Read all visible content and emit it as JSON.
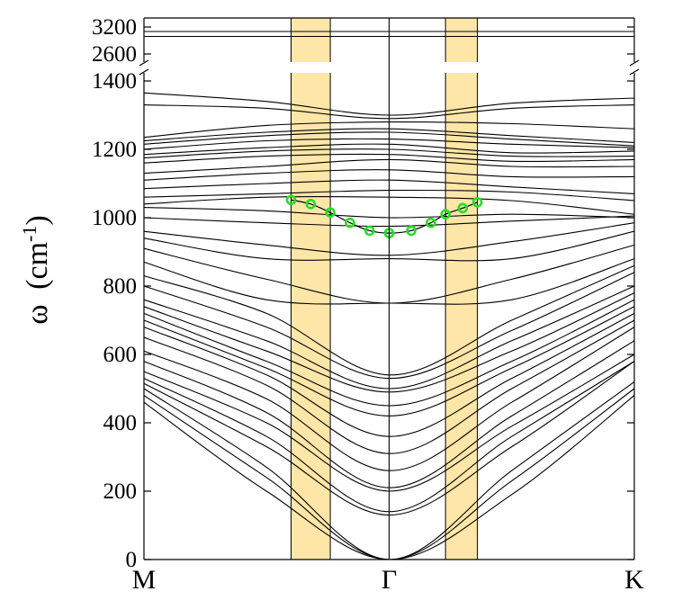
{
  "chart_data": {
    "type": "line",
    "title": "",
    "xlabel": "",
    "ylabel": {
      "symbol": "ω",
      "unit_open": "(cm",
      "unit_sup": "-1",
      "unit_close": ")"
    },
    "x_ticks": [
      "M",
      "Γ",
      "K"
    ],
    "x_tick_positions": [
      0,
      1,
      2
    ],
    "y_ticks_lower": [
      "0",
      "200",
      "400",
      "600",
      "800",
      "1000",
      "1200",
      "1400"
    ],
    "y_ticks_upper": [
      "2600",
      "3200"
    ],
    "ylim_lower": [
      0,
      1400
    ],
    "ylim_upper": [
      2600,
      3200
    ],
    "axis_break": true,
    "grid": false,
    "legend": "none",
    "highlight_bands": [
      [
        0.6,
        0.76
      ],
      [
        1.23,
        1.36
      ]
    ],
    "highlight_color": "#fde6a8",
    "marker_color": "#22e022",
    "line_color": "#000000",
    "highlighted_mode": {
      "x": [
        0.6,
        0.68,
        0.76,
        0.84,
        0.92,
        1.0,
        1.09,
        1.17,
        1.23,
        1.3,
        1.36
      ],
      "y": [
        1052,
        1040,
        1015,
        985,
        962,
        955,
        962,
        985,
        1010,
        1028,
        1045
      ]
    },
    "series": [
      {
        "x": [
          0,
          1,
          2
        ],
        "y": [
          3100,
          3100,
          3100
        ]
      },
      {
        "x": [
          0,
          1,
          2
        ],
        "y": [
          2990,
          2990,
          2990
        ]
      },
      {
        "x": [
          0,
          0.5,
          1,
          1.5,
          2
        ],
        "y": [
          1365,
          1340,
          1300,
          1335,
          1350
        ]
      },
      {
        "x": [
          0,
          0.5,
          1,
          1.5,
          2
        ],
        "y": [
          1330,
          1320,
          1290,
          1320,
          1330
        ]
      },
      {
        "x": [
          0,
          0.5,
          1,
          1.5,
          2
        ],
        "y": [
          1235,
          1270,
          1280,
          1275,
          1260
        ]
      },
      {
        "x": [
          0,
          0.5,
          1,
          1.5,
          2
        ],
        "y": [
          1225,
          1250,
          1260,
          1240,
          1220
        ]
      },
      {
        "x": [
          0,
          0.5,
          1,
          1.5,
          2
        ],
        "y": [
          1215,
          1240,
          1250,
          1230,
          1210
        ]
      },
      {
        "x": [
          0,
          0.5,
          1,
          1.5,
          2
        ],
        "y": [
          1200,
          1225,
          1230,
          1215,
          1205
        ]
      },
      {
        "x": [
          0,
          0.5,
          1,
          1.5,
          2
        ],
        "y": [
          1185,
          1205,
          1215,
          1190,
          1195
        ]
      },
      {
        "x": [
          0,
          0.5,
          1,
          1.5,
          2
        ],
        "y": [
          1175,
          1195,
          1200,
          1180,
          1180
        ]
      },
      {
        "x": [
          0,
          0.5,
          1,
          1.5,
          2
        ],
        "y": [
          1160,
          1180,
          1185,
          1165,
          1170
        ]
      },
      {
        "x": [
          0,
          0.5,
          1,
          1.5,
          2
        ],
        "y": [
          1130,
          1150,
          1170,
          1150,
          1150
        ]
      },
      {
        "x": [
          0,
          0.5,
          1,
          1.5,
          2
        ],
        "y": [
          1110,
          1130,
          1140,
          1120,
          1120
        ]
      },
      {
        "x": [
          0,
          0.5,
          1,
          1.5,
          2
        ],
        "y": [
          1085,
          1100,
          1110,
          1090,
          1070
        ]
      },
      {
        "x": [
          0,
          0.5,
          1,
          1.5,
          2
        ],
        "y": [
          1060,
          1070,
          1080,
          1075,
          1050
        ]
      },
      {
        "x": [
          0,
          0.5,
          1,
          1.5,
          2
        ],
        "y": [
          1040,
          1060,
          1060,
          1050,
          1010
        ]
      },
      {
        "x": [
          0,
          0.5,
          1,
          1.5,
          2
        ],
        "y": [
          1030,
          1020,
          1000,
          1010,
          1000
        ]
      },
      {
        "x": [
          0,
          0.5,
          1,
          1.5,
          2
        ],
        "y": [
          1000,
          985,
          975,
          990,
          1005
        ]
      },
      {
        "x": [
          0,
          0.5,
          1,
          1.5,
          2
        ],
        "y": [
          960,
          920,
          890,
          930,
          985
        ]
      },
      {
        "x": [
          0,
          0.5,
          1,
          1.5,
          2
        ],
        "y": [
          940,
          880,
          880,
          880,
          960
        ]
      },
      {
        "x": [
          0,
          0.5,
          1,
          1.5,
          2
        ],
        "y": [
          910,
          820,
          750,
          820,
          920
        ]
      },
      {
        "x": [
          0,
          0.5,
          1,
          1.5,
          2
        ],
        "y": [
          870,
          760,
          750,
          760,
          880
        ]
      },
      {
        "x": [
          0,
          0.5,
          1,
          1.5,
          2
        ],
        "y": [
          830,
          720,
          540,
          700,
          860
        ]
      },
      {
        "x": [
          0,
          0.5,
          1,
          1.5,
          2
        ],
        "y": [
          800,
          680,
          530,
          670,
          840
        ]
      },
      {
        "x": [
          0,
          0.5,
          1,
          1.5,
          2
        ],
        "y": [
          760,
          640,
          500,
          640,
          800
        ]
      },
      {
        "x": [
          0,
          0.5,
          1,
          1.5,
          2
        ],
        "y": [
          740,
          610,
          490,
          610,
          780
        ]
      },
      {
        "x": [
          0,
          0.5,
          1,
          1.5,
          2
        ],
        "y": [
          720,
          580,
          450,
          580,
          760
        ]
      },
      {
        "x": [
          0,
          0.5,
          1,
          1.5,
          2
        ],
        "y": [
          700,
          560,
          420,
          560,
          740
        ]
      },
      {
        "x": [
          0,
          0.5,
          1,
          1.5,
          2
        ],
        "y": [
          680,
          540,
          360,
          530,
          720
        ]
      },
      {
        "x": [
          0,
          0.5,
          1,
          1.5,
          2
        ],
        "y": [
          650,
          510,
          310,
          500,
          700
        ]
      },
      {
        "x": [
          0,
          0.5,
          1,
          1.5,
          2
        ],
        "y": [
          610,
          470,
          260,
          460,
          680
        ]
      },
      {
        "x": [
          0,
          0.5,
          1,
          1.5,
          2
        ],
        "y": [
          580,
          430,
          210,
          420,
          640
        ]
      },
      {
        "x": [
          0,
          0.5,
          1,
          1.5,
          2
        ],
        "y": [
          550,
          400,
          200,
          390,
          600
        ]
      },
      {
        "x": [
          0,
          0.5,
          1,
          1.5,
          2
        ],
        "y": [
          530,
          360,
          140,
          360,
          580
        ]
      },
      {
        "x": [
          0,
          0.5,
          1,
          1.5,
          2
        ],
        "y": [
          515,
          330,
          130,
          330,
          580
        ]
      },
      {
        "x": [
          0,
          0.5,
          1,
          1.5,
          2
        ],
        "y": [
          500,
          270,
          0,
          260,
          520
        ]
      },
      {
        "x": [
          0,
          0.5,
          1,
          1.5,
          2
        ],
        "y": [
          480,
          240,
          0,
          230,
          500
        ]
      },
      {
        "x": [
          0,
          0.5,
          1,
          1.5,
          2
        ],
        "y": [
          460,
          200,
          0,
          190,
          480
        ]
      }
    ]
  }
}
